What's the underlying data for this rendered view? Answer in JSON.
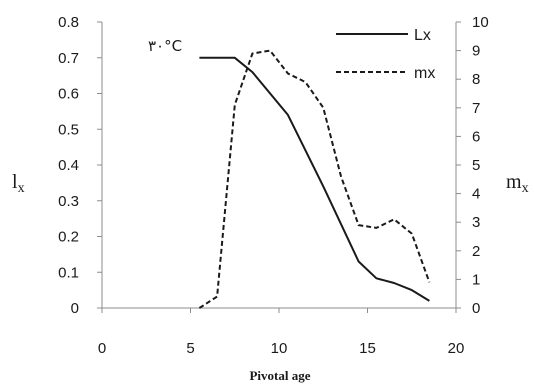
{
  "chart_data": {
    "type": "line",
    "xlabel": "Pivotal age",
    "ylabel_left": {
      "main": "l",
      "sub": "x"
    },
    "ylabel_right": {
      "main": "m",
      "sub": "x"
    },
    "xlim": [
      0,
      20
    ],
    "x_ticks": [
      "0",
      "5",
      "10",
      "15",
      "20"
    ],
    "ylim_left": [
      0,
      0.8
    ],
    "y_left_ticks": [
      "0",
      "0.1",
      "0.2",
      "0.3",
      "0.4",
      "0.5",
      "0.6",
      "0.7",
      "0.8"
    ],
    "ylim_right": [
      0,
      10
    ],
    "y_right_ticks": [
      "0",
      "1",
      "2",
      "3",
      "4",
      "5",
      "6",
      "7",
      "8",
      "9",
      "10"
    ],
    "annotation": "۳۰°C",
    "legend_position": "top-right",
    "grid": false,
    "series": [
      {
        "name": "Lx",
        "axis": "left",
        "style": "solid",
        "x": [
          5.5,
          7.5,
          8.5,
          10.5,
          12.5,
          14.5,
          15.5,
          16.5,
          17.5,
          18.5
        ],
        "values": [
          0.7,
          0.7,
          0.66,
          0.54,
          0.34,
          0.13,
          0.083,
          0.07,
          0.05,
          0.02
        ]
      },
      {
        "name": "mx",
        "axis": "right",
        "style": "dashed",
        "x": [
          5.5,
          6.5,
          7.5,
          8.5,
          9.5,
          10.5,
          11.5,
          12.5,
          13.5,
          14.5,
          15.5,
          16.5,
          17.5,
          18.5
        ],
        "values": [
          0,
          0.4,
          7.1,
          8.9,
          9.0,
          8.2,
          7.9,
          7.0,
          4.6,
          2.9,
          2.8,
          3.1,
          2.6,
          0.9
        ]
      }
    ]
  }
}
